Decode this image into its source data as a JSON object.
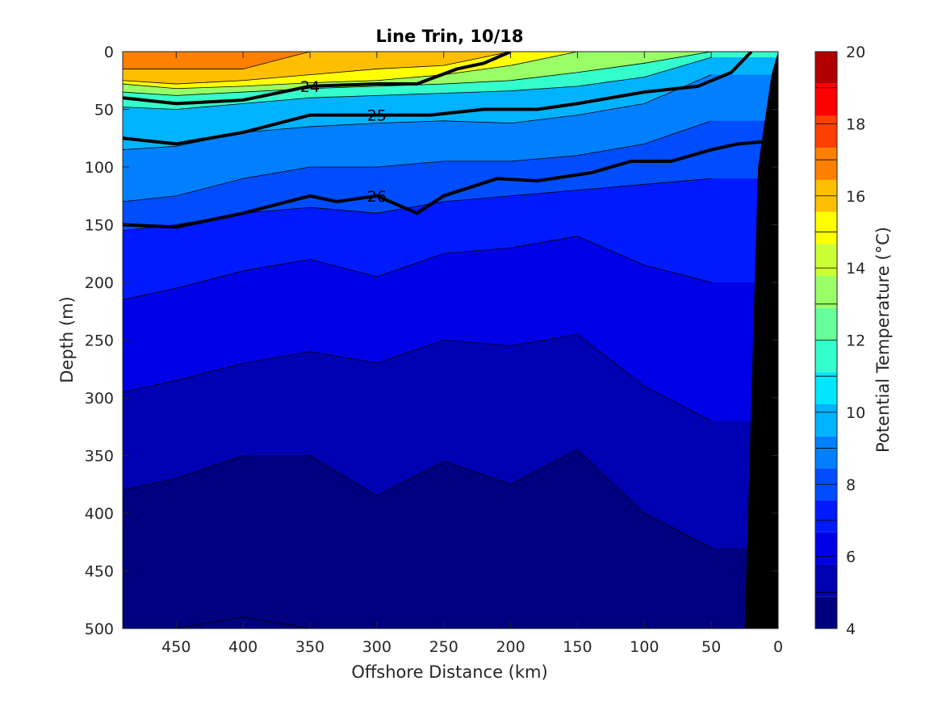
{
  "chart_data": {
    "type": "heatmap",
    "title": "Line Trin, 10/18",
    "xlabel": "Offshore Distance (km)",
    "ylabel": "Depth (m)",
    "colorbar_label": "Potential Temperature (°C)",
    "xlim": [
      490,
      0
    ],
    "ylim": [
      0,
      500
    ],
    "x_ticks": [
      450,
      400,
      350,
      300,
      250,
      200,
      150,
      100,
      50,
      0
    ],
    "y_ticks": [
      0,
      50,
      100,
      150,
      200,
      250,
      300,
      350,
      400,
      450,
      500
    ],
    "colorbar": {
      "range": [
        4,
        20
      ],
      "ticks": [
        4,
        6,
        8,
        10,
        12,
        14,
        16,
        18,
        20
      ],
      "levels": [
        4,
        5,
        6,
        7,
        8,
        9,
        10,
        11,
        12,
        13,
        14,
        15,
        16,
        17,
        18,
        19,
        20
      ],
      "colors": [
        "#000080",
        "#0000b3",
        "#0000e6",
        "#001aff",
        "#004dff",
        "#0080ff",
        "#00b3ff",
        "#00e6ff",
        "#33ffcc",
        "#66ff99",
        "#99ff66",
        "#ccff33",
        "#ffff00",
        "#ffbf00",
        "#ff8000",
        "#ff4000",
        "#ff0000",
        "#b30000"
      ]
    },
    "temperature_bands": [
      {
        "temperature": 18,
        "depths": [
          15,
          15,
          15,
          0,
          0,
          0,
          0,
          0,
          0,
          0
        ]
      },
      {
        "temperature": 17,
        "depths": [
          25,
          28,
          25,
          20,
          15,
          12,
          0,
          0,
          0,
          0
        ]
      },
      {
        "temperature": 16,
        "depths": [
          28,
          32,
          30,
          27,
          25,
          20,
          12,
          0,
          0,
          0
        ]
      },
      {
        "temperature": 14,
        "depths": [
          35,
          38,
          35,
          32,
          30,
          28,
          25,
          18,
          10,
          0
        ]
      },
      {
        "temperature": 12,
        "depths": [
          48,
          50,
          45,
          40,
          38,
          36,
          34,
          30,
          22,
          5
        ]
      },
      {
        "temperature": 10,
        "depths": [
          85,
          82,
          70,
          65,
          62,
          60,
          62,
          55,
          45,
          20
        ]
      },
      {
        "temperature": 9,
        "depths": [
          130,
          125,
          110,
          100,
          100,
          95,
          95,
          90,
          80,
          60
        ]
      },
      {
        "temperature": 8,
        "depths": [
          155,
          150,
          140,
          135,
          140,
          130,
          125,
          120,
          115,
          110
        ]
      },
      {
        "temperature": 7,
        "depths": [
          215,
          205,
          190,
          180,
          195,
          175,
          170,
          160,
          185,
          200
        ]
      },
      {
        "temperature": 6,
        "depths": [
          295,
          285,
          270,
          260,
          270,
          250,
          255,
          245,
          290,
          320
        ]
      },
      {
        "temperature": 5,
        "depths": [
          380,
          370,
          350,
          350,
          385,
          355,
          375,
          345,
          400,
          430
        ]
      },
      {
        "temperature": 4.5,
        "depths": [
          500,
          500,
          490,
          500,
          500,
          500,
          500,
          500,
          500,
          500
        ]
      }
    ],
    "band_x": [
      490,
      450,
      400,
      350,
      300,
      250,
      200,
      150,
      100,
      50
    ],
    "density_contours": [
      {
        "label": "24",
        "points": [
          [
            490,
            40
          ],
          [
            450,
            45
          ],
          [
            400,
            42
          ],
          [
            350,
            30
          ],
          [
            300,
            28
          ],
          [
            270,
            28
          ],
          [
            240,
            15
          ],
          [
            220,
            10
          ],
          [
            200,
            0
          ]
        ]
      },
      {
        "label": "25",
        "points": [
          [
            490,
            75
          ],
          [
            450,
            80
          ],
          [
            400,
            70
          ],
          [
            350,
            55
          ],
          [
            300,
            55
          ],
          [
            260,
            55
          ],
          [
            220,
            50
          ],
          [
            180,
            50
          ],
          [
            150,
            45
          ],
          [
            100,
            35
          ],
          [
            60,
            30
          ],
          [
            35,
            18
          ],
          [
            20,
            0
          ]
        ]
      },
      {
        "label": "26",
        "points": [
          [
            490,
            150
          ],
          [
            450,
            152
          ],
          [
            400,
            140
          ],
          [
            350,
            125
          ],
          [
            330,
            130
          ],
          [
            300,
            125
          ],
          [
            270,
            140
          ],
          [
            250,
            125
          ],
          [
            210,
            110
          ],
          [
            180,
            112
          ],
          [
            140,
            105
          ],
          [
            110,
            95
          ],
          [
            80,
            95
          ],
          [
            50,
            85
          ],
          [
            30,
            80
          ],
          [
            10,
            78
          ]
        ]
      }
    ],
    "bathymetry": [
      [
        25,
        500
      ],
      [
        0,
        500
      ],
      [
        0,
        0
      ],
      [
        5,
        20
      ],
      [
        15,
        100
      ],
      [
        20,
        300
      ]
    ]
  }
}
